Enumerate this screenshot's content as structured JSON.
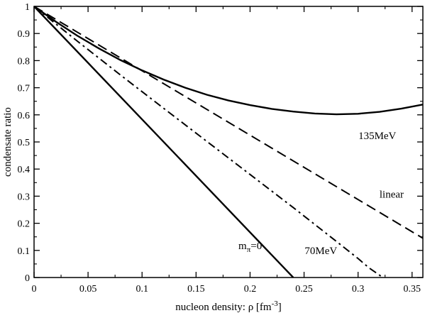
{
  "chart_data": {
    "type": "line",
    "xlabel": "nucleon density: ρ [fm⁻³]",
    "xlabel_main": "nucleon density: ρ [fm",
    "xlabel_exp": "-3",
    "xlabel_close": "]",
    "ylabel": "condensate ratio",
    "xlim": [
      0,
      0.36
    ],
    "ylim": [
      0,
      1
    ],
    "xticks": [
      0,
      0.05,
      0.1,
      0.15,
      0.2,
      0.25,
      0.3,
      0.35
    ],
    "xtick_labels": [
      "0",
      "0.05",
      "0.1",
      "0.15",
      "0.2",
      "0.25",
      "0.3",
      "0.35"
    ],
    "yticks": [
      0,
      0.1,
      0.2,
      0.3,
      0.4,
      0.5,
      0.6,
      0.7,
      0.8,
      0.9,
      1
    ],
    "ytick_labels": [
      "0",
      "0.1",
      "0.2",
      "0.3",
      "0.4",
      "0.5",
      "0.6",
      "0.7",
      "0.8",
      "0.9",
      "1"
    ],
    "grid": false,
    "legend": "none",
    "series": [
      {
        "name": "135MeV",
        "style": "solid",
        "x": [
          0,
          0.02,
          0.04,
          0.06,
          0.08,
          0.1,
          0.12,
          0.14,
          0.16,
          0.18,
          0.2,
          0.22,
          0.24,
          0.26,
          0.28,
          0.3,
          0.32,
          0.34,
          0.36
        ],
        "values": [
          1.0,
          0.944,
          0.892,
          0.845,
          0.802,
          0.764,
          0.73,
          0.7,
          0.674,
          0.653,
          0.636,
          0.622,
          0.612,
          0.605,
          0.602,
          0.604,
          0.611,
          0.623,
          0.638
        ]
      },
      {
        "name": "linear",
        "style": "dashed",
        "x": [
          0,
          0.36
        ],
        "values": [
          1.0,
          0.145
        ]
      },
      {
        "name": "70MeV",
        "style": "dashdot",
        "x": [
          0,
          0.04,
          0.08,
          0.12,
          0.16,
          0.2,
          0.24,
          0.28,
          0.3,
          0.31,
          0.323
        ],
        "values": [
          1.0,
          0.872,
          0.747,
          0.624,
          0.502,
          0.38,
          0.258,
          0.133,
          0.07,
          0.036,
          0.0
        ]
      },
      {
        "name": "m",
        "name_sub": "π",
        "name_tail": "=0",
        "style": "solid",
        "x": [
          0,
          0.24
        ],
        "values": [
          1.0,
          0.0
        ]
      }
    ]
  }
}
